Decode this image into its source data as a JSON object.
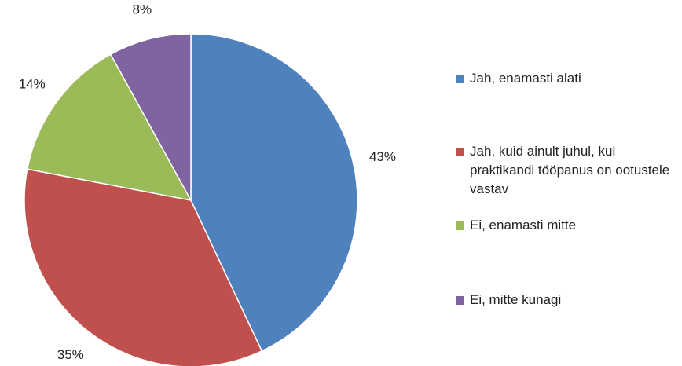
{
  "chart_data": {
    "type": "pie",
    "categories": [
      "Jah, enamasti alati",
      "Jah, kuid ainult juhul, kui praktikandi tööpanus on ootustele vastav",
      "Ei, enamasti mitte",
      "Ei, mitte kunagi"
    ],
    "values": [
      43,
      35,
      14,
      8
    ],
    "value_labels": [
      "43%",
      "35%",
      "14%",
      "8%"
    ],
    "colors": [
      "#4f81bd",
      "#c0504d",
      "#9bbb59",
      "#8064a2"
    ],
    "legend": "right"
  }
}
